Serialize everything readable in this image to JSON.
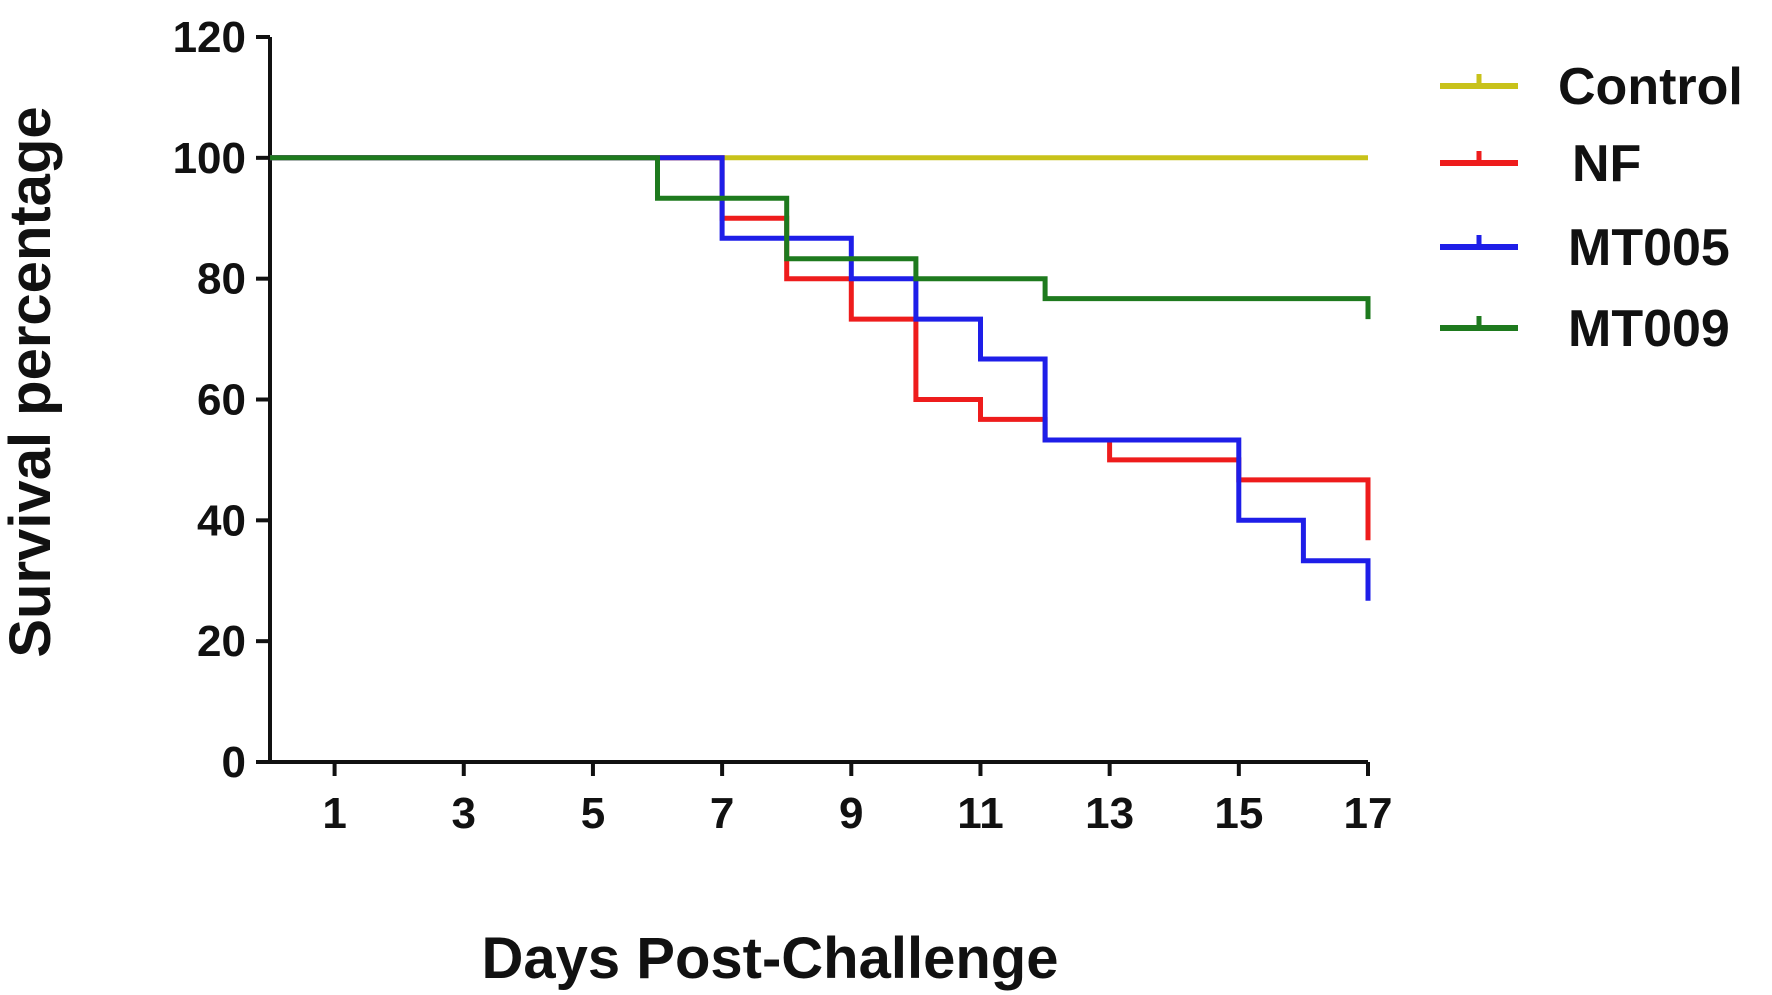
{
  "chart_data": {
    "type": "line",
    "step": true,
    "title": "",
    "xlabel": "Days Post-Challenge",
    "ylabel": "Survival percentage",
    "xlim": [
      0,
      17
    ],
    "ylim": [
      0,
      120
    ],
    "xticks": [
      1,
      3,
      5,
      7,
      9,
      11,
      13,
      15,
      17
    ],
    "yticks": [
      0,
      20,
      40,
      60,
      80,
      100,
      120
    ],
    "grid": false,
    "legend": "right",
    "series": [
      {
        "name": "Control",
        "color": "#c8c21a",
        "points": [
          [
            0,
            100
          ],
          [
            17,
            100
          ]
        ]
      },
      {
        "name": "NF",
        "color": "#ee1c1c",
        "points": [
          [
            0,
            100
          ],
          [
            7,
            100
          ],
          [
            7,
            90
          ],
          [
            8,
            90
          ],
          [
            8,
            80
          ],
          [
            9,
            80
          ],
          [
            9,
            73.3
          ],
          [
            10,
            73.3
          ],
          [
            10,
            60
          ],
          [
            11,
            60
          ],
          [
            11,
            56.7
          ],
          [
            12,
            56.7
          ],
          [
            12,
            53.3
          ],
          [
            13,
            53.3
          ],
          [
            13,
            50
          ],
          [
            15,
            50
          ],
          [
            15,
            46.7
          ],
          [
            17,
            46.7
          ],
          [
            17,
            36.7
          ]
        ]
      },
      {
        "name": "MT005",
        "color": "#1e1ee8",
        "points": [
          [
            0,
            100
          ],
          [
            7,
            100
          ],
          [
            7,
            86.7
          ],
          [
            9,
            86.7
          ],
          [
            9,
            80
          ],
          [
            10,
            80
          ],
          [
            10,
            73.3
          ],
          [
            11,
            73.3
          ],
          [
            11,
            66.7
          ],
          [
            12,
            66.7
          ],
          [
            12,
            53.3
          ],
          [
            15,
            53.3
          ],
          [
            15,
            40
          ],
          [
            16,
            40
          ],
          [
            16,
            33.3
          ],
          [
            17,
            33.3
          ],
          [
            17,
            26.7
          ]
        ]
      },
      {
        "name": "MT009",
        "color": "#1e7a1e",
        "points": [
          [
            0,
            100
          ],
          [
            6,
            100
          ],
          [
            6,
            93.3
          ],
          [
            8,
            93.3
          ],
          [
            8,
            83.3
          ],
          [
            10,
            83.3
          ],
          [
            10,
            80
          ],
          [
            12,
            80
          ],
          [
            12,
            76.7
          ],
          [
            17,
            76.7
          ],
          [
            17,
            73.3
          ]
        ]
      }
    ]
  }
}
